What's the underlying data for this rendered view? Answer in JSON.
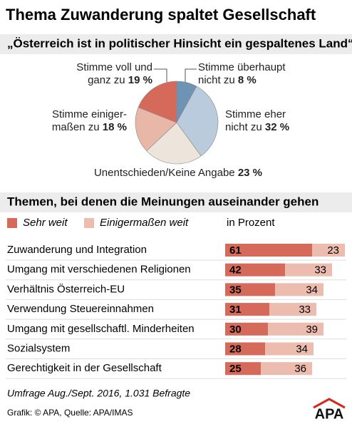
{
  "title": "Thema Zuwanderung spaltet Gesellschaft",
  "chart_data": [
    {
      "type": "pie",
      "title": "„Österreich ist in politischer Hinsicht ein gespaltenes Land“",
      "categories": [
        "Stimme überhaupt nicht zu",
        "Stimme eher nicht zu",
        "Unentschieden/Keine Angabe",
        "Stimme einiger­maßen zu",
        "Stimme voll und ganz zu"
      ],
      "values": [
        8,
        32,
        23,
        18,
        19
      ],
      "value_labels": [
        "8 %",
        "32 %",
        "23 %",
        "18 %",
        "19 %"
      ],
      "colors": [
        "#6f93b5",
        "#b9cbdc",
        "#ede5db",
        "#e9b7a8",
        "#d5695a"
      ]
    },
    {
      "type": "stacked-bar",
      "title": "Themen, bei denen die Meinungen auseinander gehen",
      "note": "in Prozent",
      "categories": [
        "Zuwanderung und Integration",
        "Umgang mit verschiedenen Religionen",
        "Verhältnis Österreich-EU",
        "Verwendung Steuereinnahmen",
        "Umgang mit gesellschaftl. Minderheiten",
        "Sozialsystem",
        "Gerechtigkeit in der Gesellschaft"
      ],
      "series": [
        {
          "name": "Sehr weit",
          "color": "#d5695a",
          "values": [
            61,
            42,
            35,
            31,
            30,
            28,
            25
          ]
        },
        {
          "name": "Einigermaßen weit",
          "color": "#ecbcae",
          "values": [
            23,
            33,
            34,
            33,
            39,
            34,
            36
          ]
        }
      ]
    }
  ],
  "survey_note": "Umfrage Aug./Sept. 2016, 1.031 Befragte",
  "credit": "Grafik: © APA, Quelle: APA/IMAS",
  "logo": "APA"
}
